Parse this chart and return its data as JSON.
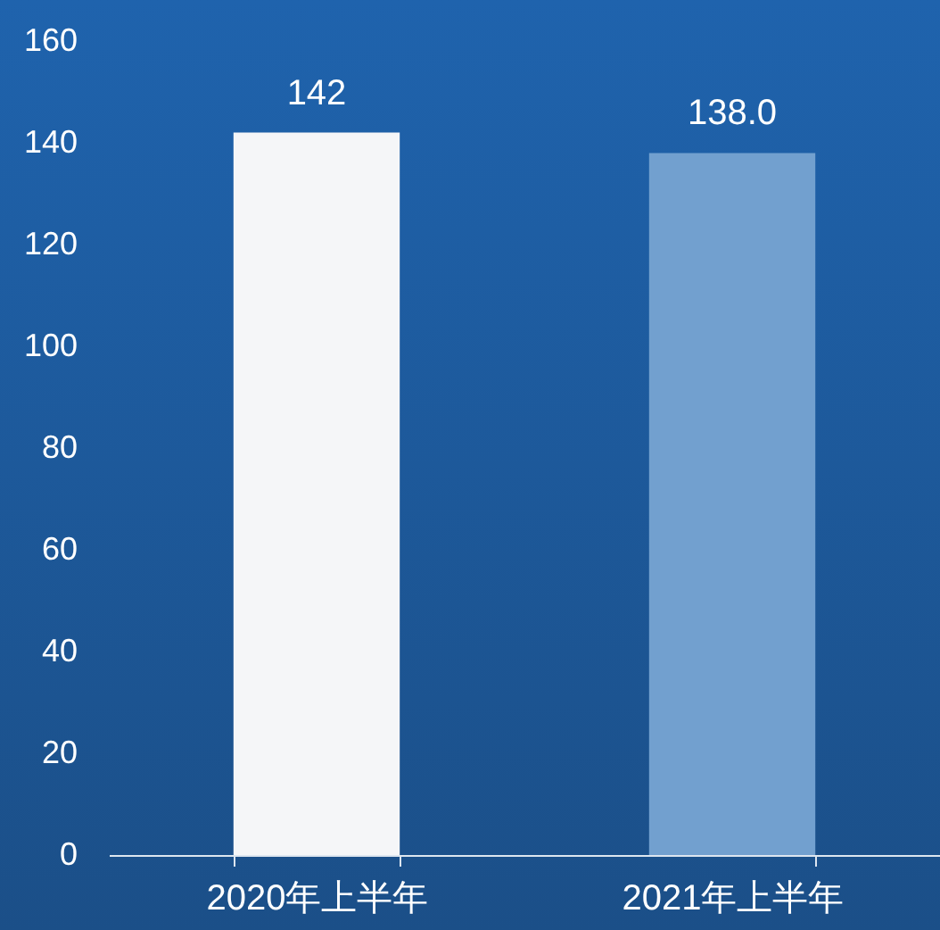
{
  "chart_data": {
    "type": "bar",
    "categories": [
      "2020年上半年",
      "2021年上半年"
    ],
    "values": [
      142,
      138
    ],
    "colors": [
      "#f5f6f8",
      "#72a0cf"
    ],
    "value_labels": [
      "142",
      "138.0"
    ],
    "ylim": [
      0,
      160
    ],
    "yticks": [
      0,
      20,
      40,
      60,
      80,
      100,
      120,
      140,
      160
    ]
  }
}
